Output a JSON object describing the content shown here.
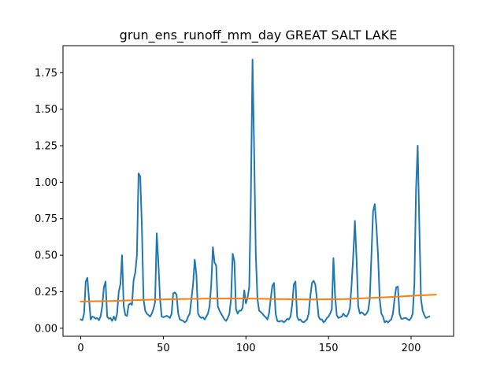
{
  "chart_data": {
    "type": "line",
    "title": "grun_ens_runoff_mm_day GREAT SALT LAKE",
    "xlabel": "",
    "ylabel": "",
    "xlim": [
      -10.75,
      225.75
    ],
    "ylim": [
      -0.055,
      1.935
    ],
    "x_ticks": [
      0,
      50,
      100,
      150,
      200
    ],
    "x_tick_labels": [
      "0",
      "50",
      "100",
      "150",
      "200"
    ],
    "y_ticks": [
      0.0,
      0.25,
      0.5,
      0.75,
      1.0,
      1.25,
      1.5,
      1.75
    ],
    "y_tick_labels": [
      "0.00",
      "0.25",
      "0.50",
      "0.75",
      "1.00",
      "1.25",
      "1.50",
      "1.75"
    ],
    "grid": false,
    "legend": "none",
    "series": [
      {
        "color": "#1f77b4",
        "values": [
          0.06,
          0.055,
          0.1,
          0.32,
          0.345,
          0.2,
          0.06,
          0.08,
          0.075,
          0.065,
          0.07,
          0.055,
          0.08,
          0.15,
          0.28,
          0.32,
          0.08,
          0.065,
          0.07,
          0.05,
          0.08,
          0.055,
          0.1,
          0.25,
          0.3,
          0.5,
          0.15,
          0.09,
          0.085,
          0.16,
          0.17,
          0.16,
          0.33,
          0.38,
          0.5,
          1.06,
          1.04,
          0.7,
          0.2,
          0.12,
          0.1,
          0.09,
          0.08,
          0.1,
          0.13,
          0.18,
          0.65,
          0.45,
          0.2,
          0.08,
          0.075,
          0.08,
          0.085,
          0.08,
          0.07,
          0.1,
          0.24,
          0.245,
          0.23,
          0.1,
          0.06,
          0.055,
          0.05,
          0.04,
          0.05,
          0.08,
          0.1,
          0.2,
          0.3,
          0.47,
          0.37,
          0.1,
          0.08,
          0.07,
          0.075,
          0.06,
          0.08,
          0.1,
          0.15,
          0.3,
          0.555,
          0.45,
          0.43,
          0.15,
          0.12,
          0.1,
          0.08,
          0.06,
          0.05,
          0.07,
          0.1,
          0.2,
          0.51,
          0.46,
          0.13,
          0.1,
          0.12,
          0.12,
          0.14,
          0.26,
          0.17,
          0.21,
          0.28,
          0.9,
          1.84,
          1.2,
          0.5,
          0.2,
          0.12,
          0.11,
          0.1,
          0.085,
          0.075,
          0.06,
          0.1,
          0.2,
          0.29,
          0.31,
          0.1,
          0.05,
          0.045,
          0.05,
          0.05,
          0.04,
          0.05,
          0.065,
          0.06,
          0.08,
          0.16,
          0.3,
          0.32,
          0.08,
          0.055,
          0.06,
          0.045,
          0.04,
          0.05,
          0.06,
          0.1,
          0.22,
          0.31,
          0.325,
          0.3,
          0.2,
          0.08,
          0.06,
          0.06,
          0.04,
          0.05,
          0.07,
          0.08,
          0.1,
          0.13,
          0.48,
          0.22,
          0.09,
          0.07,
          0.075,
          0.08,
          0.1,
          0.085,
          0.08,
          0.1,
          0.14,
          0.3,
          0.5,
          0.735,
          0.47,
          0.15,
          0.1,
          0.11,
          0.1,
          0.09,
          0.1,
          0.12,
          0.2,
          0.5,
          0.8,
          0.85,
          0.7,
          0.5,
          0.2,
          0.1,
          0.08,
          0.04,
          0.05,
          0.04,
          0.05,
          0.06,
          0.1,
          0.2,
          0.28,
          0.285,
          0.1,
          0.065,
          0.065,
          0.07,
          0.07,
          0.06,
          0.055,
          0.07,
          0.1,
          0.3,
          0.95,
          1.25,
          0.7,
          0.2,
          0.12,
          0.09,
          0.07,
          0.075,
          0.08
        ]
      },
      {
        "color": "#ff7f0e",
        "points": [
          [
            0,
            0.183
          ],
          [
            20,
            0.187
          ],
          [
            40,
            0.195
          ],
          [
            60,
            0.2
          ],
          [
            80,
            0.203
          ],
          [
            100,
            0.203
          ],
          [
            120,
            0.2
          ],
          [
            140,
            0.197
          ],
          [
            160,
            0.2
          ],
          [
            175,
            0.207
          ],
          [
            190,
            0.215
          ],
          [
            205,
            0.225
          ],
          [
            215,
            0.23
          ]
        ]
      }
    ]
  }
}
